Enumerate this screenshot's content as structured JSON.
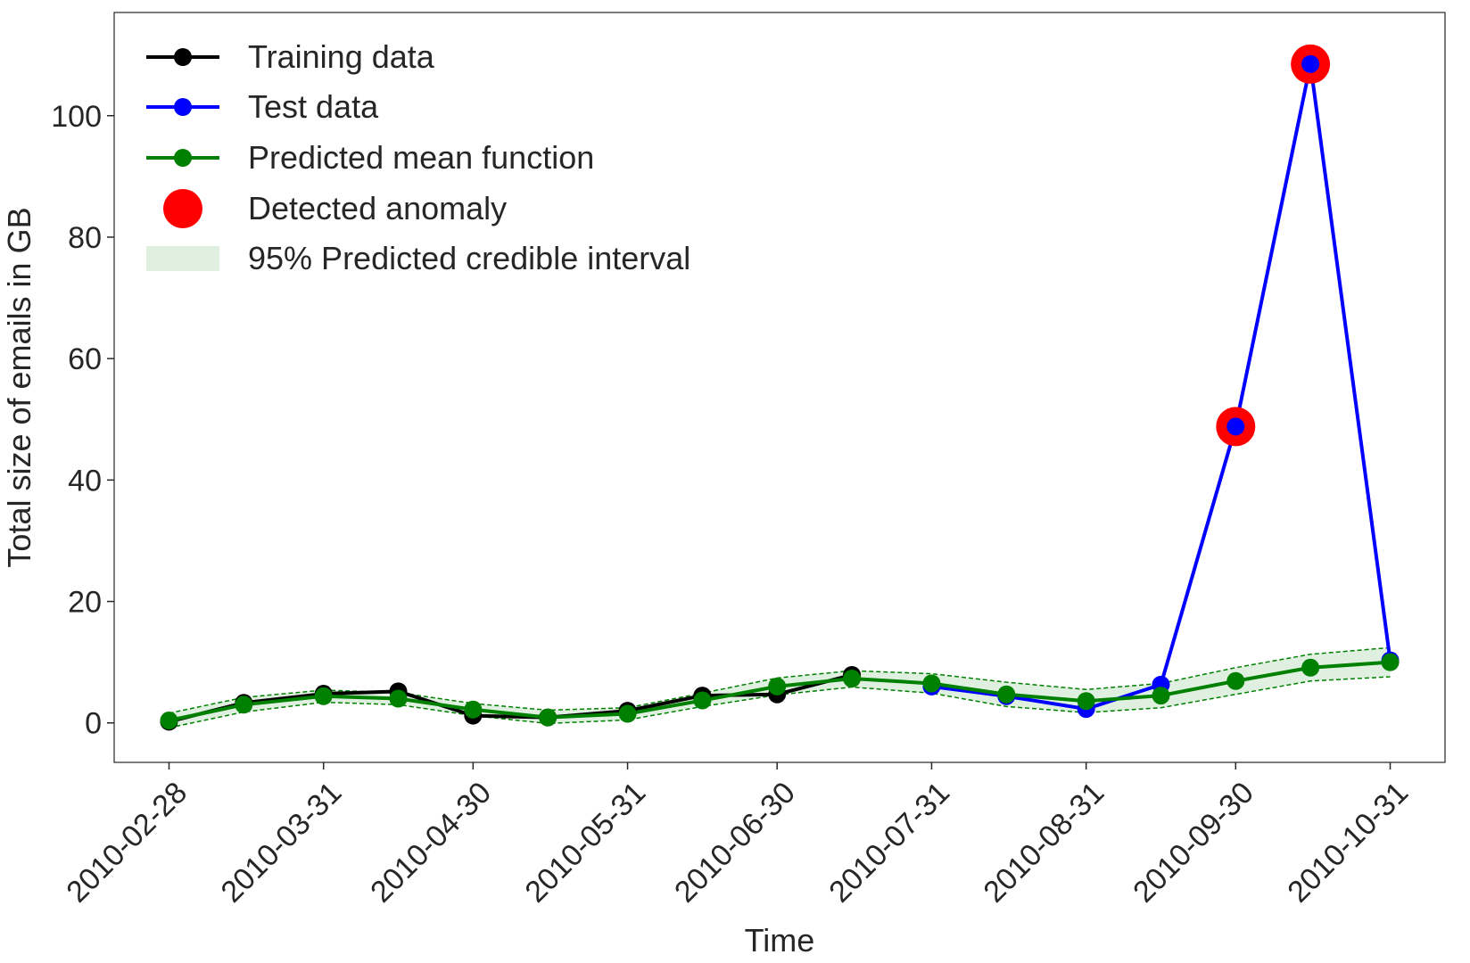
{
  "chart_data": {
    "type": "line",
    "title": "",
    "xlabel": "Time",
    "ylabel": "Total size of emails in GB",
    "xlim": [
      "2010-02-17",
      "2010-11-11"
    ],
    "ylim": [
      -6.5,
      117
    ],
    "x_ticks": [
      "2010-02-28",
      "2010-03-31",
      "2010-04-30",
      "2010-05-31",
      "2010-06-30",
      "2010-07-31",
      "2010-08-31",
      "2010-09-30",
      "2010-10-31"
    ],
    "y_ticks": [
      0,
      20,
      40,
      60,
      80,
      100
    ],
    "grid": false,
    "legend_position": "top-left",
    "series": [
      {
        "name": "Training data",
        "color": "#000000",
        "marker": "circle",
        "x": [
          "2010-02-28",
          "2010-03-15",
          "2010-03-31",
          "2010-04-15",
          "2010-04-30",
          "2010-05-15",
          "2010-05-31",
          "2010-06-15",
          "2010-06-30",
          "2010-07-15"
        ],
        "y": [
          0.2,
          3.3,
          4.8,
          5.2,
          1.2,
          0.9,
          2.0,
          4.5,
          4.7,
          7.9
        ]
      },
      {
        "name": "Test data",
        "color": "#0000ff",
        "marker": "circle",
        "x": [
          "2010-07-31",
          "2010-08-15",
          "2010-08-31",
          "2010-09-15",
          "2010-09-30",
          "2010-10-15",
          "2010-10-31"
        ],
        "y": [
          6.0,
          4.4,
          2.3,
          6.3,
          48.8,
          108.5,
          10.3
        ]
      },
      {
        "name": "Predicted mean function",
        "color": "#008000",
        "marker": "circle",
        "x": [
          "2010-02-28",
          "2010-03-15",
          "2010-03-31",
          "2010-04-15",
          "2010-04-30",
          "2010-05-15",
          "2010-05-31",
          "2010-06-15",
          "2010-06-30",
          "2010-07-15",
          "2010-07-31",
          "2010-08-15",
          "2010-08-31",
          "2010-09-15",
          "2010-09-30",
          "2010-10-15",
          "2010-10-31"
        ],
        "y": [
          0.4,
          3.0,
          4.4,
          4.0,
          2.2,
          0.9,
          1.5,
          3.7,
          6.0,
          7.3,
          6.5,
          4.7,
          3.6,
          4.5,
          6.9,
          9.1,
          10.0
        ]
      }
    ],
    "interval": {
      "name": "95% Predicted credible interval",
      "color": "#008000",
      "lower": [
        -0.8,
        1.8,
        3.4,
        3.0,
        1.2,
        -0.1,
        0.5,
        2.7,
        4.6,
        5.9,
        4.9,
        2.7,
        1.7,
        2.5,
        4.7,
        6.9,
        7.6
      ],
      "upper": [
        1.6,
        4.2,
        5.4,
        5.0,
        3.2,
        2.1,
        2.5,
        4.9,
        7.4,
        8.6,
        8.1,
        6.7,
        5.5,
        6.5,
        9.1,
        11.3,
        12.4
      ]
    },
    "anomalies": {
      "name": "Detected anomaly",
      "color": "#ff0000",
      "x": [
        "2010-09-30",
        "2010-10-15"
      ],
      "y": [
        48.8,
        108.5
      ]
    }
  }
}
